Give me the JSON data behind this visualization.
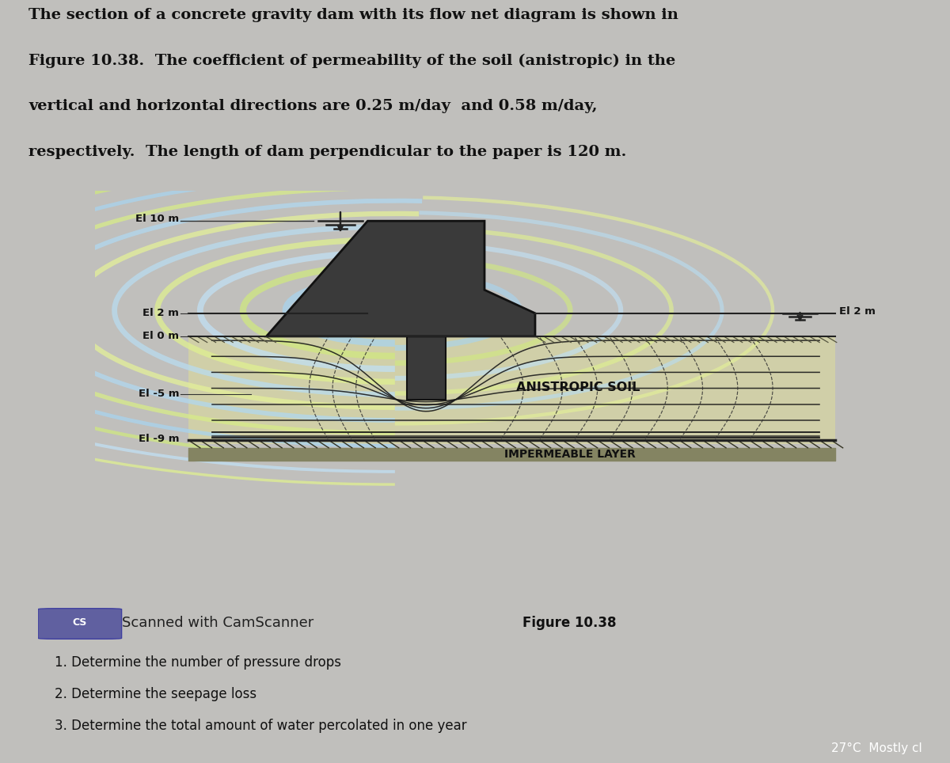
{
  "fig_bg": "#c0bfbc",
  "title_text_line1": "The section of a concrete gravity dam with its flow net diagram is shown in",
  "title_text_line2": "Figure 10.38.  The coefficient of permeability of the soil (anistropic) in the",
  "title_text_line3": "vertical and horizontal directions are 0.25 m/day  and 0.58 m/day,",
  "title_text_line4": "respectively.  The length of dam perpendicular to the paper is 120 m.",
  "el_labels": [
    "El 10 m",
    "El 2 m",
    "El 0 m",
    "El -5 m",
    "El -9 m",
    "El 2 m"
  ],
  "soil_label": "ANISTROPIC SOIL",
  "impermeable_label": "IMPERMEABLE LAYER",
  "figure_label": "Figure 10.38",
  "camscan_text": "CS  Scanned with CamScanner",
  "questions": [
    "1. Determine the number of pressure drops",
    "2. Determine the seepage loss",
    "3. Determine the total amount of water percolated in one year"
  ],
  "taskbar_text": "27°C  Mostly cl",
  "diagram_bg": "#e0dfd8",
  "dam_color": "#3a3a3a",
  "soil_bg": "#d2d0b0",
  "flow_colors": [
    "#b0d8f0",
    "#d8ec88",
    "#a8d4ee",
    "#d0e880",
    "#c0e0f4",
    "#dff090",
    "#b8dcf0",
    "#e4f098"
  ],
  "right_border_color": "#909090"
}
